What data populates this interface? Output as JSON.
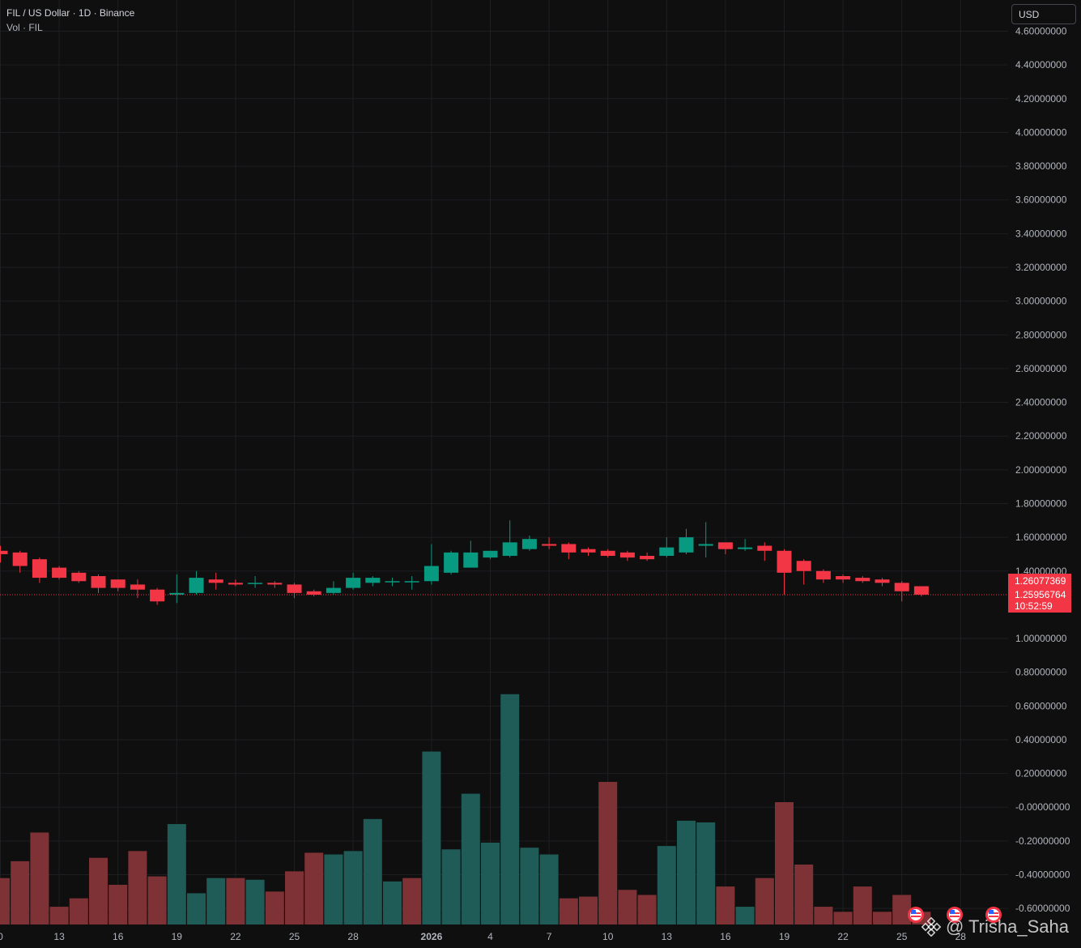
{
  "header": {
    "symbol_title": "FIL / US Dollar · 1D · Binance",
    "volume_title": "Vol · FIL",
    "currency_button": "USD"
  },
  "price_labels": {
    "last_price": "1.26077369",
    "current_price": "1.25956764",
    "countdown": "10:52:59"
  },
  "watermark": {
    "author": "@ Trisha_Saha"
  },
  "colors": {
    "background": "#0f0f0f",
    "grid": "#1d1f23",
    "up": "#089981",
    "down": "#f23645",
    "up_volume": "#1f5c58",
    "down_volume": "#7f3235",
    "axis_text": "#b2b5be"
  },
  "chart_data": {
    "type": "candlestick",
    "y_tick_labels": [
      "4.60000000",
      "4.40000000",
      "4.20000000",
      "4.00000000",
      "3.80000000",
      "3.60000000",
      "3.40000000",
      "3.20000000",
      "3.00000000",
      "2.80000000",
      "2.60000000",
      "2.40000000",
      "2.20000000",
      "2.00000000",
      "1.80000000",
      "1.60000000",
      "1.40000000",
      "1.00000000",
      "0.80000000",
      "0.60000000",
      "0.40000000",
      "0.20000000",
      "-0.00000000",
      "-0.20000000",
      "-0.40000000",
      "-0.60000000"
    ],
    "y_tick_values": [
      4.6,
      4.4,
      4.2,
      4.0,
      3.8,
      3.6,
      3.4,
      3.2,
      3.0,
      2.8,
      2.6,
      2.4,
      2.2,
      2.0,
      1.8,
      1.6,
      1.4,
      1.0,
      0.8,
      0.6,
      0.4,
      0.2,
      0.0,
      -0.2,
      -0.4,
      -0.6
    ],
    "ylim": [
      -0.69,
      4.6
    ],
    "x_tick_labels": [
      {
        "i": 0,
        "label": "0",
        "bold": false
      },
      {
        "i": 3,
        "label": "13",
        "bold": false
      },
      {
        "i": 6,
        "label": "16",
        "bold": false
      },
      {
        "i": 9,
        "label": "19",
        "bold": false
      },
      {
        "i": 12,
        "label": "22",
        "bold": false
      },
      {
        "i": 15,
        "label": "25",
        "bold": false
      },
      {
        "i": 18,
        "label": "28",
        "bold": false
      },
      {
        "i": 22,
        "label": "2026",
        "bold": true
      },
      {
        "i": 25,
        "label": "4",
        "bold": false
      },
      {
        "i": 28,
        "label": "7",
        "bold": false
      },
      {
        "i": 31,
        "label": "10",
        "bold": false
      },
      {
        "i": 34,
        "label": "13",
        "bold": false
      },
      {
        "i": 37,
        "label": "16",
        "bold": false
      },
      {
        "i": 40,
        "label": "19",
        "bold": false
      },
      {
        "i": 43,
        "label": "22",
        "bold": false
      },
      {
        "i": 46,
        "label": "25",
        "bold": false
      },
      {
        "i": 49,
        "label": "28",
        "bold": false
      }
    ],
    "candles": [
      {
        "o": 1.52,
        "h": 1.55,
        "l": 1.45,
        "c": 1.5
      },
      {
        "o": 1.51,
        "h": 1.52,
        "l": 1.39,
        "c": 1.43
      },
      {
        "o": 1.47,
        "h": 1.48,
        "l": 1.33,
        "c": 1.36
      },
      {
        "o": 1.42,
        "h": 1.43,
        "l": 1.35,
        "c": 1.36
      },
      {
        "o": 1.39,
        "h": 1.4,
        "l": 1.33,
        "c": 1.34
      },
      {
        "o": 1.37,
        "h": 1.38,
        "l": 1.27,
        "c": 1.3
      },
      {
        "o": 1.35,
        "h": 1.35,
        "l": 1.28,
        "c": 1.3
      },
      {
        "o": 1.32,
        "h": 1.35,
        "l": 1.24,
        "c": 1.29
      },
      {
        "o": 1.29,
        "h": 1.3,
        "l": 1.2,
        "c": 1.22
      },
      {
        "o": 1.26,
        "h": 1.38,
        "l": 1.21,
        "c": 1.27
      },
      {
        "o": 1.27,
        "h": 1.4,
        "l": 1.26,
        "c": 1.36
      },
      {
        "o": 1.35,
        "h": 1.39,
        "l": 1.29,
        "c": 1.33
      },
      {
        "o": 1.33,
        "h": 1.35,
        "l": 1.31,
        "c": 1.32
      },
      {
        "o": 1.33,
        "h": 1.37,
        "l": 1.3,
        "c": 1.33
      },
      {
        "o": 1.33,
        "h": 1.34,
        "l": 1.3,
        "c": 1.32
      },
      {
        "o": 1.32,
        "h": 1.33,
        "l": 1.24,
        "c": 1.27
      },
      {
        "o": 1.28,
        "h": 1.29,
        "l": 1.25,
        "c": 1.26
      },
      {
        "o": 1.27,
        "h": 1.34,
        "l": 1.26,
        "c": 1.3
      },
      {
        "o": 1.3,
        "h": 1.39,
        "l": 1.29,
        "c": 1.36
      },
      {
        "o": 1.33,
        "h": 1.37,
        "l": 1.31,
        "c": 1.36
      },
      {
        "o": 1.34,
        "h": 1.36,
        "l": 1.31,
        "c": 1.34
      },
      {
        "o": 1.34,
        "h": 1.37,
        "l": 1.29,
        "c": 1.34
      },
      {
        "o": 1.34,
        "h": 1.56,
        "l": 1.32,
        "c": 1.43
      },
      {
        "o": 1.39,
        "h": 1.52,
        "l": 1.38,
        "c": 1.51
      },
      {
        "o": 1.42,
        "h": 1.58,
        "l": 1.42,
        "c": 1.51
      },
      {
        "o": 1.48,
        "h": 1.52,
        "l": 1.47,
        "c": 1.52
      },
      {
        "o": 1.49,
        "h": 1.7,
        "l": 1.48,
        "c": 1.57
      },
      {
        "o": 1.53,
        "h": 1.61,
        "l": 1.52,
        "c": 1.59
      },
      {
        "o": 1.56,
        "h": 1.6,
        "l": 1.53,
        "c": 1.55
      },
      {
        "o": 1.56,
        "h": 1.57,
        "l": 1.47,
        "c": 1.51
      },
      {
        "o": 1.53,
        "h": 1.54,
        "l": 1.49,
        "c": 1.51
      },
      {
        "o": 1.52,
        "h": 1.53,
        "l": 1.48,
        "c": 1.49
      },
      {
        "o": 1.51,
        "h": 1.52,
        "l": 1.46,
        "c": 1.48
      },
      {
        "o": 1.49,
        "h": 1.51,
        "l": 1.46,
        "c": 1.47
      },
      {
        "o": 1.49,
        "h": 1.6,
        "l": 1.48,
        "c": 1.54
      },
      {
        "o": 1.51,
        "h": 1.65,
        "l": 1.5,
        "c": 1.6
      },
      {
        "o": 1.55,
        "h": 1.69,
        "l": 1.48,
        "c": 1.56
      },
      {
        "o": 1.57,
        "h": 1.57,
        "l": 1.5,
        "c": 1.53
      },
      {
        "o": 1.53,
        "h": 1.59,
        "l": 1.52,
        "c": 1.54
      },
      {
        "o": 1.55,
        "h": 1.57,
        "l": 1.46,
        "c": 1.52
      },
      {
        "o": 1.52,
        "h": 1.53,
        "l": 1.26,
        "c": 1.39
      },
      {
        "o": 1.46,
        "h": 1.47,
        "l": 1.32,
        "c": 1.4
      },
      {
        "o": 1.4,
        "h": 1.41,
        "l": 1.33,
        "c": 1.35
      },
      {
        "o": 1.37,
        "h": 1.38,
        "l": 1.33,
        "c": 1.35
      },
      {
        "o": 1.36,
        "h": 1.37,
        "l": 1.33,
        "c": 1.34
      },
      {
        "o": 1.35,
        "h": 1.36,
        "l": 1.31,
        "c": 1.33
      },
      {
        "o": 1.33,
        "h": 1.34,
        "l": 1.22,
        "c": 1.28
      },
      {
        "o": 1.31,
        "h": 1.31,
        "l": 1.25,
        "c": 1.26
      }
    ],
    "volume_bars": [
      {
        "top": -0.42,
        "up": false
      },
      {
        "top": -0.32,
        "up": false
      },
      {
        "top": -0.15,
        "up": false
      },
      {
        "top": -0.59,
        "up": false
      },
      {
        "top": -0.54,
        "up": false
      },
      {
        "top": -0.3,
        "up": false
      },
      {
        "top": -0.46,
        "up": false
      },
      {
        "top": -0.26,
        "up": false
      },
      {
        "top": -0.41,
        "up": false
      },
      {
        "top": -0.1,
        "up": true
      },
      {
        "top": -0.51,
        "up": true
      },
      {
        "top": -0.42,
        "up": true
      },
      {
        "top": -0.42,
        "up": false
      },
      {
        "top": -0.43,
        "up": true
      },
      {
        "top": -0.5,
        "up": false
      },
      {
        "top": -0.38,
        "up": false
      },
      {
        "top": -0.27,
        "up": false
      },
      {
        "top": -0.28,
        "up": true
      },
      {
        "top": -0.26,
        "up": true
      },
      {
        "top": -0.07,
        "up": true
      },
      {
        "top": -0.44,
        "up": true
      },
      {
        "top": -0.42,
        "up": false
      },
      {
        "top": 0.33,
        "up": true
      },
      {
        "top": -0.25,
        "up": true
      },
      {
        "top": 0.08,
        "up": true
      },
      {
        "top": -0.21,
        "up": true
      },
      {
        "top": 0.67,
        "up": true
      },
      {
        "top": -0.24,
        "up": true
      },
      {
        "top": -0.28,
        "up": true
      },
      {
        "top": -0.54,
        "up": false
      },
      {
        "top": -0.53,
        "up": false
      },
      {
        "top": 0.15,
        "up": false
      },
      {
        "top": -0.49,
        "up": false
      },
      {
        "top": -0.52,
        "up": false
      },
      {
        "top": -0.23,
        "up": true
      },
      {
        "top": -0.08,
        "up": true
      },
      {
        "top": -0.09,
        "up": true
      },
      {
        "top": -0.47,
        "up": false
      },
      {
        "top": -0.59,
        "up": true
      },
      {
        "top": -0.42,
        "up": false
      },
      {
        "top": 0.03,
        "up": false
      },
      {
        "top": -0.34,
        "up": false
      },
      {
        "top": -0.59,
        "up": false
      },
      {
        "top": -0.62,
        "up": false
      },
      {
        "top": -0.47,
        "up": false
      },
      {
        "top": -0.62,
        "up": false
      },
      {
        "top": -0.52,
        "up": false
      },
      {
        "top": -0.62,
        "up": false
      }
    ],
    "current_price_value": 1.2596,
    "grid": true
  }
}
